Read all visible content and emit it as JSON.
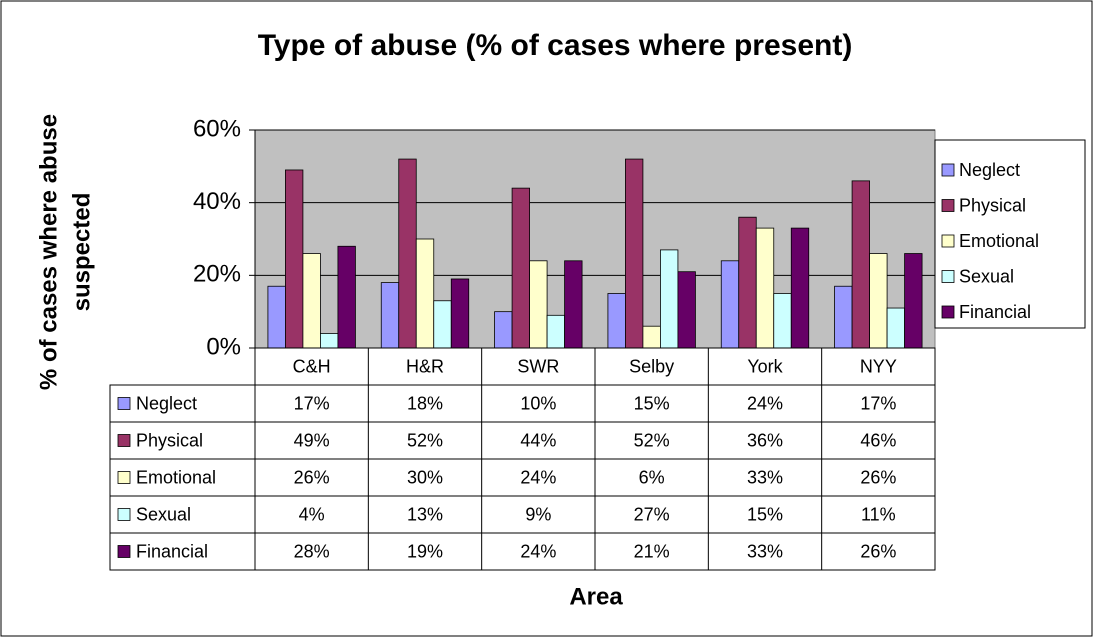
{
  "chart_data": {
    "type": "bar",
    "title": "Type of abuse (% of cases where present)",
    "x_label": "Area",
    "y_label": [
      "% of cases where abuse",
      "suspected"
    ],
    "categories": [
      "C&H",
      "H&R",
      "SWR",
      "Selby",
      "York",
      "NYY"
    ],
    "series": [
      {
        "name": "Neglect",
        "color": "#9999ff",
        "values": [
          17,
          18,
          10,
          15,
          24,
          17
        ],
        "value_labels": [
          "17%",
          "18%",
          "10%",
          "15%",
          "24%",
          "17%"
        ]
      },
      {
        "name": "Physical",
        "color": "#993366",
        "values": [
          49,
          52,
          44,
          52,
          36,
          46
        ],
        "value_labels": [
          "49%",
          "52%",
          "44%",
          "52%",
          "36%",
          "46%"
        ]
      },
      {
        "name": "Emotional",
        "color": "#ffffcc",
        "values": [
          26,
          30,
          24,
          6,
          33,
          26
        ],
        "value_labels": [
          "26%",
          "30%",
          "24%",
          "6%",
          "33%",
          "26%"
        ]
      },
      {
        "name": "Sexual",
        "color": "#ccffff",
        "values": [
          4,
          13,
          9,
          27,
          15,
          11
        ],
        "value_labels": [
          "4%",
          "13%",
          "9%",
          "27%",
          "15%",
          "11%"
        ]
      },
      {
        "name": "Financial",
        "color": "#660066",
        "values": [
          28,
          19,
          24,
          21,
          33,
          26
        ],
        "value_labels": [
          "28%",
          "19%",
          "24%",
          "21%",
          "33%",
          "26%"
        ]
      }
    ],
    "ylim": [
      0,
      60
    ],
    "yticks": [
      {
        "value": 0,
        "label": "0%"
      },
      {
        "value": 20,
        "label": "20%"
      },
      {
        "value": 40,
        "label": "40%"
      },
      {
        "value": 60,
        "label": "60%"
      }
    ],
    "grid": true,
    "plot_background": "#c0c0c0",
    "legend": "right"
  }
}
